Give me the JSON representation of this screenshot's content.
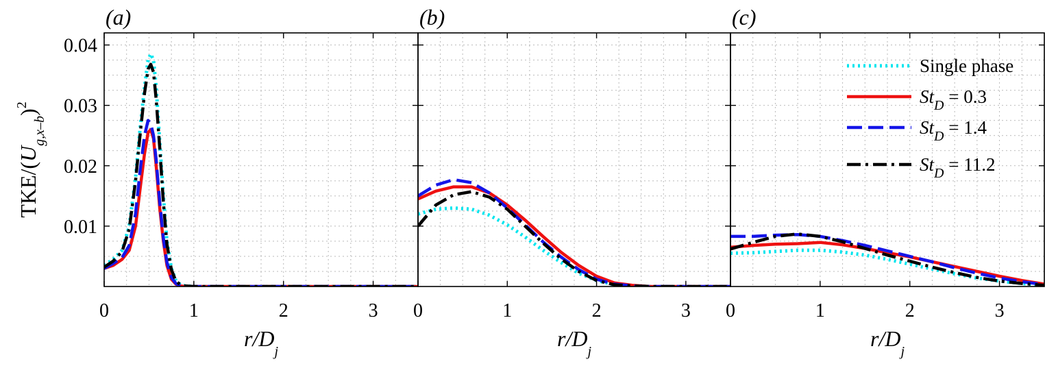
{
  "chart_data": [
    {
      "type": "line",
      "panel_label": "(a)",
      "xlim": [
        0,
        3.5
      ],
      "ylim": [
        0,
        0.042
      ],
      "xticks": [
        0,
        1,
        2,
        3
      ],
      "yticks": [
        0.01,
        0.02,
        0.03,
        0.04
      ],
      "ytick_labels": [
        "0.01",
        "0.02",
        "0.03",
        "0.04"
      ],
      "grid": true,
      "series": [
        {
          "name": "Single phase",
          "color": "#00e5ee",
          "style": "dotted",
          "x": [
            0,
            0.1,
            0.2,
            0.28,
            0.35,
            0.4,
            0.45,
            0.49,
            0.52,
            0.55,
            0.58,
            0.62,
            0.66,
            0.7,
            0.75,
            0.8,
            0.85,
            0.9,
            1.0,
            1.5,
            2.0,
            2.5,
            3.0,
            3.5
          ],
          "y": [
            0.0035,
            0.0045,
            0.006,
            0.01,
            0.018,
            0.026,
            0.033,
            0.0375,
            0.0385,
            0.0375,
            0.033,
            0.024,
            0.015,
            0.0075,
            0.003,
            0.001,
            0.0003,
            0.0001,
            0,
            0,
            0,
            0,
            0,
            0
          ]
        },
        {
          "name": "St_D = 0.3",
          "color": "#ee1111",
          "style": "solid",
          "x": [
            0,
            0.1,
            0.2,
            0.28,
            0.35,
            0.4,
            0.45,
            0.49,
            0.52,
            0.55,
            0.58,
            0.62,
            0.66,
            0.7,
            0.75,
            0.8,
            0.85,
            0.9,
            1.0,
            1.5,
            2.0,
            2.5,
            3.0,
            3.5
          ],
          "y": [
            0.003,
            0.0035,
            0.0045,
            0.006,
            0.01,
            0.016,
            0.022,
            0.0255,
            0.026,
            0.0245,
            0.02,
            0.013,
            0.0075,
            0.0035,
            0.0012,
            0.0004,
            0.0001,
            0,
            0,
            0,
            0,
            0,
            0,
            0
          ]
        },
        {
          "name": "St_D = 1.4",
          "color": "#1515e8",
          "style": "dashed",
          "x": [
            0,
            0.1,
            0.2,
            0.28,
            0.35,
            0.4,
            0.45,
            0.49,
            0.52,
            0.55,
            0.58,
            0.62,
            0.66,
            0.7,
            0.75,
            0.8,
            0.85,
            0.9,
            1.0,
            1.5,
            2.0,
            2.5,
            3.0,
            3.5
          ],
          "y": [
            0.003,
            0.0038,
            0.0048,
            0.0068,
            0.012,
            0.019,
            0.025,
            0.0275,
            0.027,
            0.025,
            0.021,
            0.014,
            0.008,
            0.004,
            0.0015,
            0.0005,
            0.0001,
            0,
            0,
            0,
            0,
            0,
            0,
            0
          ]
        },
        {
          "name": "St_D = 11.2",
          "color": "#000000",
          "style": "dashdot",
          "x": [
            0,
            0.1,
            0.2,
            0.28,
            0.35,
            0.4,
            0.45,
            0.49,
            0.52,
            0.55,
            0.58,
            0.62,
            0.66,
            0.7,
            0.75,
            0.8,
            0.85,
            0.9,
            1.0,
            1.5,
            2.0,
            2.5,
            3.0,
            3.5
          ],
          "y": [
            0.0032,
            0.0042,
            0.0058,
            0.0095,
            0.0175,
            0.025,
            0.032,
            0.036,
            0.0368,
            0.0355,
            0.031,
            0.023,
            0.014,
            0.007,
            0.0028,
            0.0009,
            0.0003,
            0.0001,
            0,
            0,
            0,
            0,
            0,
            0
          ]
        }
      ]
    },
    {
      "type": "line",
      "panel_label": "(b)",
      "xlim": [
        0,
        3.5
      ],
      "ylim": [
        0,
        0.042
      ],
      "xticks": [
        0,
        1,
        2,
        3
      ],
      "yticks": [
        0.01,
        0.02,
        0.03,
        0.04
      ],
      "grid": true,
      "series": [
        {
          "name": "Single phase",
          "color": "#00e5ee",
          "style": "dotted",
          "x": [
            0,
            0.2,
            0.4,
            0.6,
            0.8,
            1.0,
            1.2,
            1.4,
            1.6,
            1.8,
            2.0,
            2.2,
            2.4,
            2.6,
            3.0,
            3.5
          ],
          "y": [
            0.012,
            0.0128,
            0.013,
            0.0128,
            0.0118,
            0.0102,
            0.0082,
            0.006,
            0.004,
            0.0022,
            0.001,
            0.0003,
            0.0001,
            0,
            0,
            0
          ]
        },
        {
          "name": "St_D = 0.3",
          "color": "#ee1111",
          "style": "solid",
          "x": [
            0,
            0.2,
            0.4,
            0.6,
            0.8,
            1.0,
            1.2,
            1.4,
            1.6,
            1.8,
            2.0,
            2.2,
            2.4,
            2.6,
            3.0,
            3.5
          ],
          "y": [
            0.0145,
            0.0158,
            0.0165,
            0.0165,
            0.0155,
            0.0135,
            0.011,
            0.0083,
            0.0057,
            0.0035,
            0.0017,
            0.0006,
            0.0002,
            0,
            0,
            0
          ]
        },
        {
          "name": "St_D = 1.4",
          "color": "#1515e8",
          "style": "dashed",
          "x": [
            0,
            0.2,
            0.4,
            0.6,
            0.8,
            1.0,
            1.2,
            1.4,
            1.6,
            1.8,
            2.0,
            2.2,
            2.4,
            2.6,
            3.0,
            3.5
          ],
          "y": [
            0.015,
            0.0168,
            0.0177,
            0.0172,
            0.0155,
            0.013,
            0.0102,
            0.0074,
            0.0049,
            0.0028,
            0.0012,
            0.0004,
            0.0001,
            0,
            0,
            0
          ]
        },
        {
          "name": "St_D = 11.2",
          "color": "#000000",
          "style": "dashdot",
          "x": [
            0,
            0.2,
            0.4,
            0.6,
            0.8,
            1.0,
            1.2,
            1.4,
            1.6,
            1.8,
            2.0,
            2.2,
            2.4,
            2.6,
            3.0,
            3.5
          ],
          "y": [
            0.01,
            0.0135,
            0.0152,
            0.0157,
            0.0148,
            0.0128,
            0.01,
            0.0072,
            0.0046,
            0.0025,
            0.001,
            0.0003,
            0.0001,
            0,
            0,
            0
          ]
        }
      ]
    },
    {
      "type": "line",
      "panel_label": "(c)",
      "xlim": [
        0,
        3.5
      ],
      "ylim": [
        0,
        0.042
      ],
      "xticks": [
        0,
        1,
        2,
        3
      ],
      "yticks": [
        0.01,
        0.02,
        0.03,
        0.04
      ],
      "grid": true,
      "legend": "top-right",
      "series": [
        {
          "name": "Single phase",
          "color": "#00e5ee",
          "style": "dotted",
          "x": [
            0,
            0.25,
            0.5,
            0.75,
            1.0,
            1.25,
            1.5,
            1.75,
            2.0,
            2.25,
            2.5,
            2.75,
            3.0,
            3.25,
            3.5
          ],
          "y": [
            0.0055,
            0.0056,
            0.0058,
            0.006,
            0.006,
            0.0057,
            0.0052,
            0.0045,
            0.0037,
            0.0029,
            0.0021,
            0.0014,
            0.0009,
            0.0005,
            0.0002
          ]
        },
        {
          "name": "St_D = 0.3",
          "color": "#ee1111",
          "style": "solid",
          "x": [
            0,
            0.25,
            0.5,
            0.75,
            1.0,
            1.25,
            1.5,
            1.75,
            2.0,
            2.25,
            2.5,
            2.75,
            3.0,
            3.25,
            3.5
          ],
          "y": [
            0.0065,
            0.0068,
            0.007,
            0.0071,
            0.0073,
            0.0069,
            0.0063,
            0.0056,
            0.0049,
            0.0041,
            0.0033,
            0.0025,
            0.0017,
            0.001,
            0.0004
          ]
        },
        {
          "name": "St_D = 1.4",
          "color": "#1515e8",
          "style": "dashed",
          "x": [
            0,
            0.25,
            0.5,
            0.75,
            1.0,
            1.25,
            1.5,
            1.75,
            2.0,
            2.25,
            2.5,
            2.75,
            3.0,
            3.25,
            3.5
          ],
          "y": [
            0.0083,
            0.0083,
            0.0085,
            0.0086,
            0.0083,
            0.0076,
            0.0068,
            0.0059,
            0.005,
            0.0041,
            0.0031,
            0.0022,
            0.0014,
            0.0008,
            0.0003
          ]
        },
        {
          "name": "St_D = 11.2",
          "color": "#000000",
          "style": "dashdot",
          "x": [
            0,
            0.25,
            0.5,
            0.75,
            1.0,
            1.25,
            1.5,
            1.75,
            2.0,
            2.25,
            2.5,
            2.75,
            3.0,
            3.25,
            3.5
          ],
          "y": [
            0.0062,
            0.0073,
            0.0083,
            0.0087,
            0.0083,
            0.0074,
            0.0063,
            0.0052,
            0.0042,
            0.0032,
            0.0023,
            0.0015,
            0.0009,
            0.0005,
            0.0002
          ]
        }
      ]
    }
  ],
  "legend": [
    {
      "label": "Single phase",
      "color": "#00e5ee",
      "style": "dotted"
    },
    {
      "label_main": "St",
      "label_sub": "D",
      "label_tail": " = 0.3",
      "color": "#ee1111",
      "style": "solid"
    },
    {
      "label_main": "St",
      "label_sub": "D",
      "label_tail": " = 1.4",
      "color": "#1515e8",
      "style": "dashed"
    },
    {
      "label_main": "St",
      "label_sub": "D",
      "label_tail": " = 11.2",
      "color": "#000000",
      "style": "dashdot"
    }
  ],
  "ylabel": {
    "prefix": "TKE/(",
    "main": "U",
    "sub": "g,x–b",
    "suffix": ")",
    "sup": "2"
  },
  "xlabel": {
    "main": "r/D",
    "sub": "j"
  }
}
